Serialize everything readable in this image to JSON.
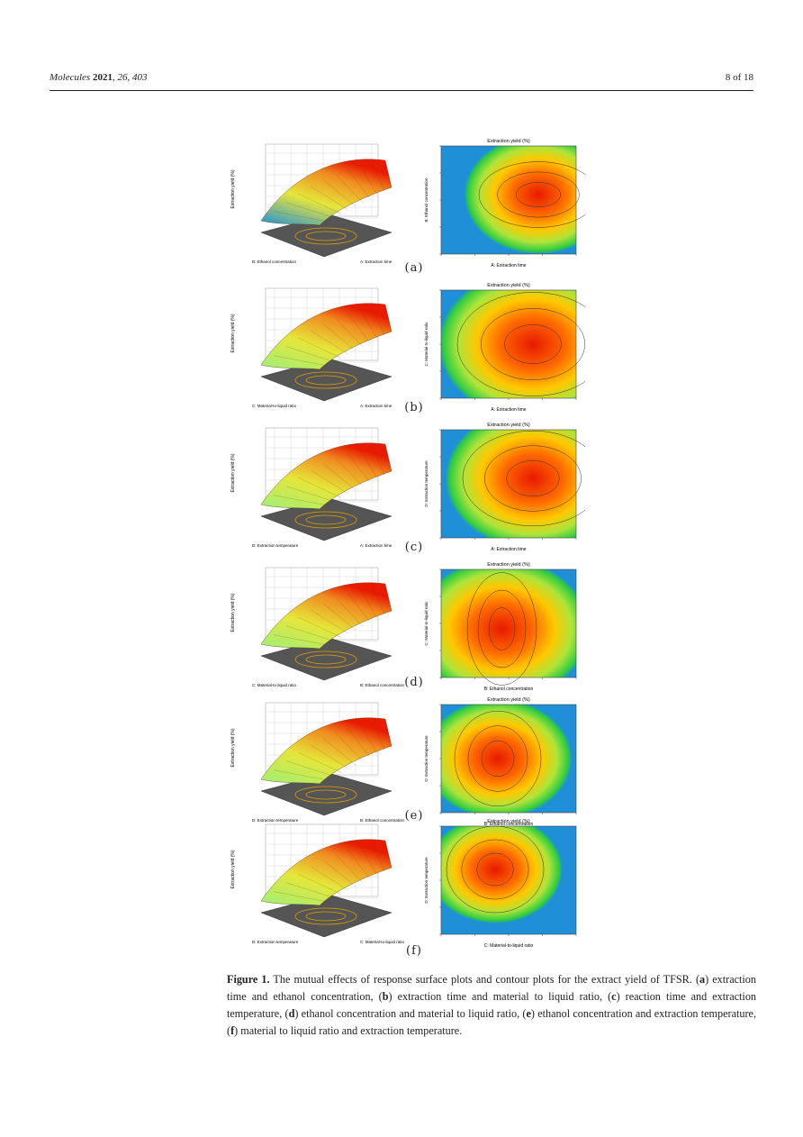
{
  "header": {
    "journal": "Molecules",
    "year": "2021",
    "volume_issue": ", 26, 403",
    "page": "8 of 18"
  },
  "panels": [
    {
      "label": "(a)",
      "contour_title": "Extraction yield (%)",
      "contour_xlabel": "A: Extraction time",
      "contour_ylabel": "B: Ethanol concentration",
      "surf_xlabel": "A: Extraction time",
      "surf_ylabel": "B: Ethanol concentration",
      "surf_zlabel": "Extraction yield (%)"
    },
    {
      "label": "(b)",
      "contour_title": "Extraction yield (%)",
      "contour_xlabel": "A: Extraction time",
      "contour_ylabel": "C: Material-to-liquid ratio",
      "surf_xlabel": "A: Extraction time",
      "surf_ylabel": "C: Material-to-liquid ratio",
      "surf_zlabel": "Extraction yield (%)"
    },
    {
      "label": "(c)",
      "contour_title": "Extraction yield (%)",
      "contour_xlabel": "A: Extraction time",
      "contour_ylabel": "D: Extraction temperature",
      "surf_xlabel": "A: Extraction time",
      "surf_ylabel": "D: Extraction temperature",
      "surf_zlabel": "Extraction yield (%)"
    },
    {
      "label": "(d)",
      "contour_title": "Extraction yield (%)",
      "contour_xlabel": "B: Ethanol concentration",
      "contour_ylabel": "C: Material-to-liquid ratio",
      "surf_xlabel": "B: Ethanol concentration",
      "surf_ylabel": "C: Material-to-liquid ratio",
      "surf_zlabel": "Extraction yield (%)"
    },
    {
      "label": "(e)",
      "contour_title": "Extraction yield (%)",
      "contour_xlabel": "B: Ethanol concentration",
      "contour_ylabel": "D: Extraction temperature",
      "surf_xlabel": "B: Ethanol concentration",
      "surf_ylabel": "D: Extraction temperature",
      "surf_zlabel": "Extraction yield (%)"
    },
    {
      "label": "(f)",
      "contour_title": "Extraction yield (%)",
      "contour_xlabel": "C: Material-to-liquid ratio",
      "contour_ylabel": "D: Extraction temperature",
      "surf_xlabel": "C: Material-to-liquid ratio",
      "surf_ylabel": "D: Extraction temperature",
      "surf_zlabel": "Extraction yield (%)"
    }
  ],
  "caption": {
    "label": "Figure 1.",
    "text1": " The mutual effects of response surface plots and contour plots for the extract yield of TFSR. (",
    "a": "a",
    "text_a": ") extraction time and ethanol concentration, (",
    "b": "b",
    "text_b": ") extraction time and material to liquid ratio, (",
    "c": "c",
    "text_c": ") reaction time and extraction temperature, (",
    "d": "d",
    "text_d": ") ethanol concentration and material to liquid ratio, (",
    "e": "e",
    "text_e": ") ethanol concentration and extraction temperature, (",
    "f": "f",
    "text_f": ") material to liquid ratio and extraction temperature."
  },
  "colors": {
    "hot": "#e81a00",
    "mid": "#ffc800",
    "cool": "#44dd44",
    "cold": "#1f8fd8"
  }
}
